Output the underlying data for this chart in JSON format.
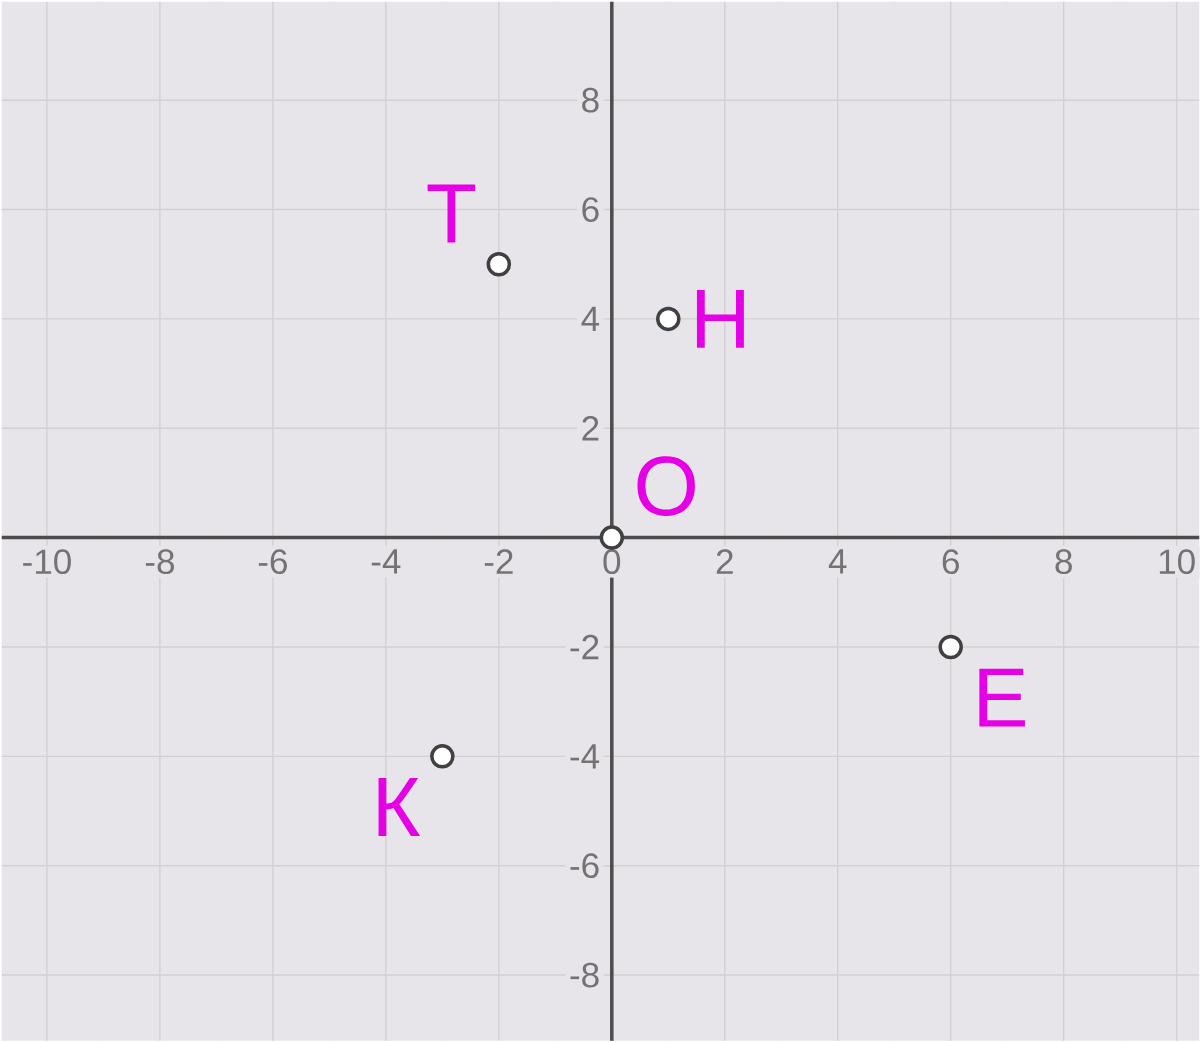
{
  "chart_data": {
    "type": "scatter",
    "x": [
      -2,
      1,
      0,
      6,
      -3
    ],
    "values": [
      5,
      4,
      0,
      -2,
      -4
    ],
    "color": "#404040",
    "marker": "circle",
    "annotations": [
      {
        "text": "Т",
        "x": -2,
        "y": 5
      },
      {
        "text": "Н",
        "x": 1,
        "y": 4
      },
      {
        "text": "О",
        "x": 0,
        "y": 0
      },
      {
        "text": "Е",
        "x": 6,
        "y": -2
      },
      {
        "text": "К",
        "x": -3,
        "y": -4
      }
    ],
    "xlim": [
      -10.8,
      10.4
    ],
    "ylim": [
      -9.2,
      9.8
    ],
    "xticks": [
      -10,
      -8,
      -6,
      -4,
      -2,
      0,
      2,
      4,
      6,
      8,
      10
    ],
    "yticks": [
      -8,
      -6,
      -4,
      -2,
      2,
      4,
      6,
      8
    ],
    "grid": true
  }
}
